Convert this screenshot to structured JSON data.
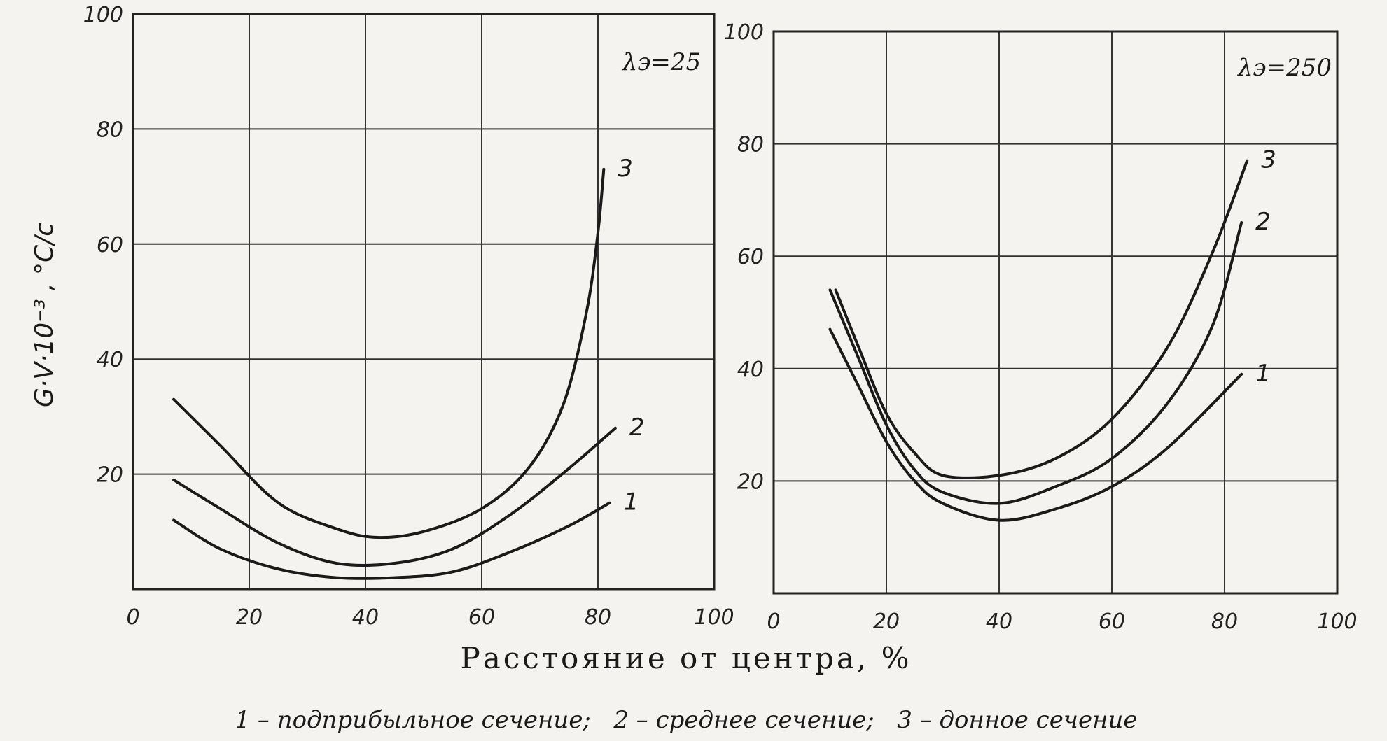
{
  "figure": {
    "ylabel": "G·V·10⁻³ , °C/c",
    "xlabel": "Расстояние от центра, %",
    "caption": "1 – подприбыльное сечение;   2 – среднее сечение;   3 – донное сечение"
  },
  "chart_data": [
    {
      "type": "line",
      "title": "λэ=25",
      "xlim": [
        0,
        100
      ],
      "ylim": [
        0,
        100
      ],
      "x_ticks": [
        "0",
        "20",
        "40",
        "60",
        "80",
        "100"
      ],
      "y_ticks": [
        "20",
        "40",
        "60",
        "80",
        "100"
      ],
      "grid": true,
      "series": [
        {
          "name": "1",
          "x": [
            7,
            15,
            25,
            35,
            45,
            55,
            65,
            75,
            82
          ],
          "y": [
            12,
            7,
            3.5,
            2,
            2,
            3,
            6.5,
            11,
            15
          ]
        },
        {
          "name": "2",
          "x": [
            7,
            15,
            25,
            35,
            45,
            55,
            65,
            75,
            83
          ],
          "y": [
            19,
            14,
            8,
            4.5,
            4.5,
            7,
            13,
            21,
            28
          ]
        },
        {
          "name": "3",
          "x": [
            7,
            15,
            25,
            35,
            42,
            50,
            60,
            68,
            74,
            78,
            80,
            81
          ],
          "y": [
            33,
            25,
            15,
            10.5,
            9,
            10,
            14,
            21,
            32,
            48,
            62,
            73
          ]
        }
      ]
    },
    {
      "type": "line",
      "title": "λэ=250",
      "xlim": [
        0,
        100
      ],
      "ylim": [
        0,
        100
      ],
      "x_ticks": [
        "0",
        "20",
        "40",
        "60",
        "80",
        "100"
      ],
      "y_ticks": [
        "20",
        "40",
        "60",
        "80",
        "100"
      ],
      "grid": true,
      "series": [
        {
          "name": "1",
          "x": [
            10,
            15,
            20,
            25,
            30,
            40,
            50,
            60,
            70,
            83
          ],
          "y": [
            47,
            37,
            27,
            20,
            16,
            13,
            15,
            19,
            26,
            39
          ]
        },
        {
          "name": "2",
          "x": [
            10,
            15,
            20,
            25,
            30,
            40,
            50,
            60,
            70,
            78,
            83
          ],
          "y": [
            54,
            42,
            30,
            22,
            18,
            16,
            19,
            24,
            34,
            48,
            66
          ]
        },
        {
          "name": "3",
          "x": [
            11,
            15,
            20,
            25,
            30,
            40,
            50,
            60,
            70,
            78,
            84
          ],
          "y": [
            54,
            44,
            32,
            25,
            21,
            21,
            24,
            31,
            44,
            61,
            77
          ]
        }
      ]
    }
  ]
}
